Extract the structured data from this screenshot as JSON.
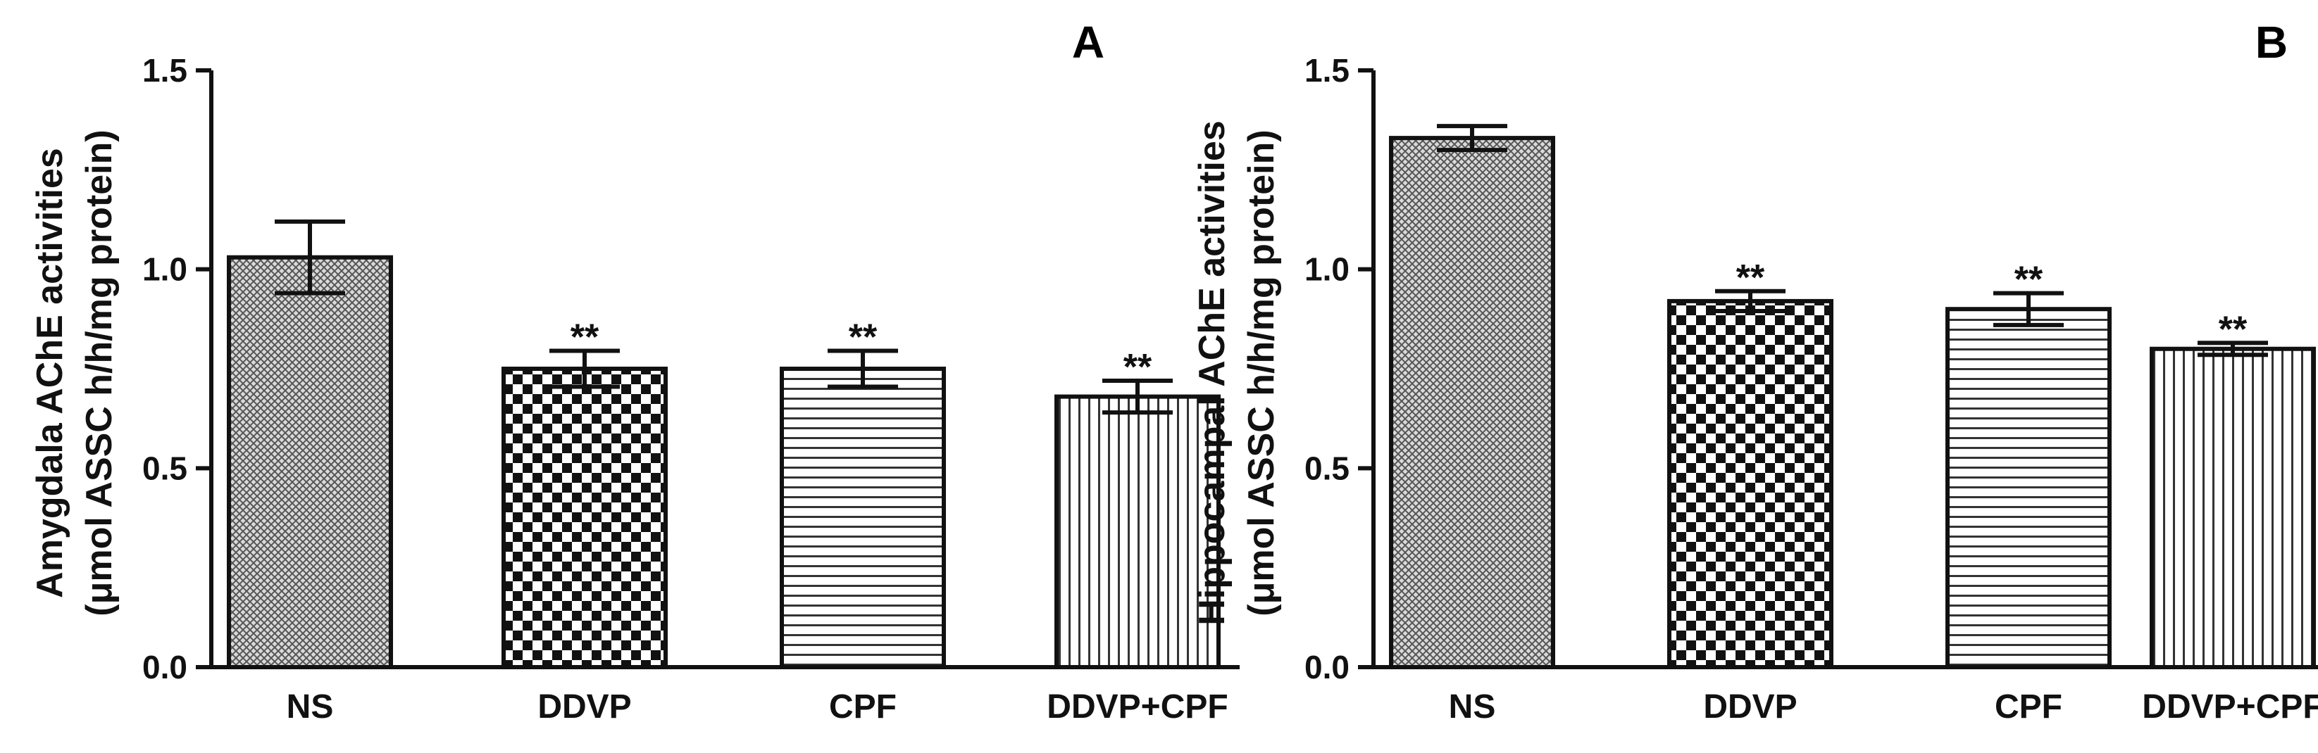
{
  "chart_data": [
    {
      "type": "bar",
      "panel_label": "A",
      "ylabel_line1": "Amygdala AChE activities",
      "ylabel_line2": "(μmol ASSC h/h/mg protein)",
      "categories": [
        "NS",
        "DDVP",
        "CPF",
        "DDVP+CPF"
      ],
      "values": [
        1.03,
        0.75,
        0.75,
        0.68
      ],
      "errors": [
        0.09,
        0.045,
        0.045,
        0.04
      ],
      "significance": [
        "",
        "**",
        "**",
        "**"
      ],
      "patterns": [
        "crosshatch",
        "checker",
        "hlines",
        "vlines"
      ],
      "ylim": [
        0,
        1.5
      ],
      "yticks": [
        "0.0",
        "0.5",
        "1.0",
        "1.5"
      ]
    },
    {
      "type": "bar",
      "panel_label": "B",
      "ylabel_line1": "Hippocampal AChE activities",
      "ylabel_line2": "(μmol ASSC h/h/mg protein)",
      "categories": [
        "NS",
        "DDVP",
        "CPF",
        "DDVP+CPF"
      ],
      "values": [
        1.33,
        0.92,
        0.9,
        0.8
      ],
      "errors": [
        0.03,
        0.025,
        0.04,
        0.015
      ],
      "significance": [
        "",
        "**",
        "**",
        "**"
      ],
      "patterns": [
        "crosshatch",
        "checker",
        "hlines",
        "vlines"
      ],
      "ylim": [
        0,
        1.5
      ],
      "yticks": [
        "0.0",
        "0.5",
        "1.0",
        "1.5"
      ]
    }
  ]
}
